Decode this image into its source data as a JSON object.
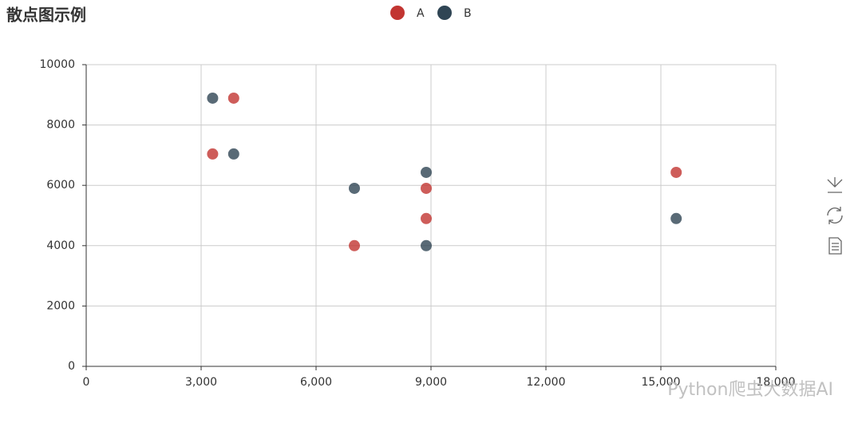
{
  "chart_data": {
    "type": "scatter",
    "title": "散点图示例",
    "series": [
      {
        "name": "A",
        "color": "#c23531",
        "x": [
          3300,
          3850,
          7000,
          8875,
          8875,
          15400
        ],
        "values": [
          7040,
          8890,
          4000,
          5900,
          4900,
          6430
        ]
      },
      {
        "name": "B",
        "color": "#2f4554",
        "x": [
          3300,
          3850,
          7000,
          8875,
          8875,
          15400
        ],
        "values": [
          8890,
          7040,
          5900,
          6430,
          4000,
          4900
        ]
      }
    ],
    "xlim": [
      0,
      18000
    ],
    "xticks": [
      0,
      {
        "value": 3000,
        "label": "3,000"
      },
      {
        "value": 6000,
        "label": "6,000"
      },
      {
        "value": 9000,
        "label": "9,000"
      },
      {
        "value": 12000,
        "label": "12,000"
      },
      {
        "value": 15000,
        "label": "15,000"
      },
      {
        "value": 18000,
        "label": "18,000"
      }
    ],
    "ylim": [
      0,
      10000
    ],
    "yticks": [
      0,
      2000,
      4000,
      6000,
      8000,
      10000
    ],
    "grid": true,
    "watermark": "Python爬虫大数据AI"
  }
}
